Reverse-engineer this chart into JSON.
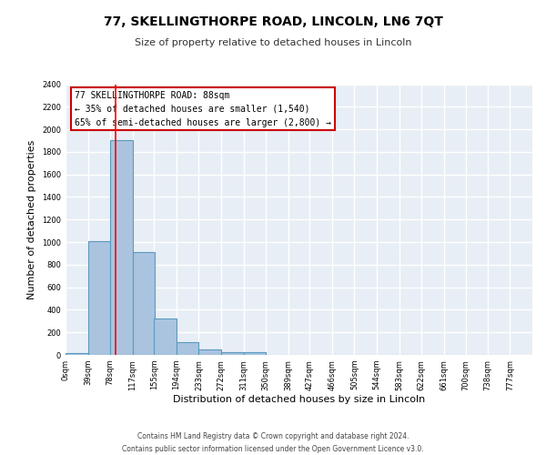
{
  "title": "77, SKELLINGTHORPE ROAD, LINCOLN, LN6 7QT",
  "subtitle": "Size of property relative to detached houses in Lincoln",
  "xlabel": "Distribution of detached houses by size in Lincoln",
  "ylabel": "Number of detached properties",
  "bin_edges": [
    0,
    39,
    78,
    117,
    155,
    194,
    233,
    272,
    311,
    350,
    389,
    427,
    466,
    505,
    544,
    583,
    622,
    661,
    700,
    738,
    777
  ],
  "bar_heights": [
    20,
    1010,
    1900,
    910,
    320,
    110,
    50,
    25,
    25,
    0,
    0,
    0,
    0,
    0,
    0,
    0,
    0,
    0,
    0,
    0
  ],
  "bar_color": "#aac4e0",
  "bar_edge_color": "#5a9abe",
  "background_color": "#e8eef5",
  "grid_color": "#ffffff",
  "red_line_x": 88,
  "ylim": [
    0,
    2400
  ],
  "yticks": [
    0,
    200,
    400,
    600,
    800,
    1000,
    1200,
    1400,
    1600,
    1800,
    2000,
    2200,
    2400
  ],
  "annotation_text": "77 SKELLINGTHORPE ROAD: 88sqm\n← 35% of detached houses are smaller (1,540)\n65% of semi-detached houses are larger (2,800) →",
  "annotation_box_color": "#ffffff",
  "annotation_box_edge_color": "#cc0000",
  "footer_line1": "Contains HM Land Registry data © Crown copyright and database right 2024.",
  "footer_line2": "Contains public sector information licensed under the Open Government Licence v3.0.",
  "x_tick_labels": [
    "0sqm",
    "39sqm",
    "78sqm",
    "117sqm",
    "155sqm",
    "194sqm",
    "233sqm",
    "272sqm",
    "311sqm",
    "350sqm",
    "389sqm",
    "427sqm",
    "466sqm",
    "505sqm",
    "544sqm",
    "583sqm",
    "622sqm",
    "661sqm",
    "700sqm",
    "738sqm",
    "777sqm"
  ]
}
